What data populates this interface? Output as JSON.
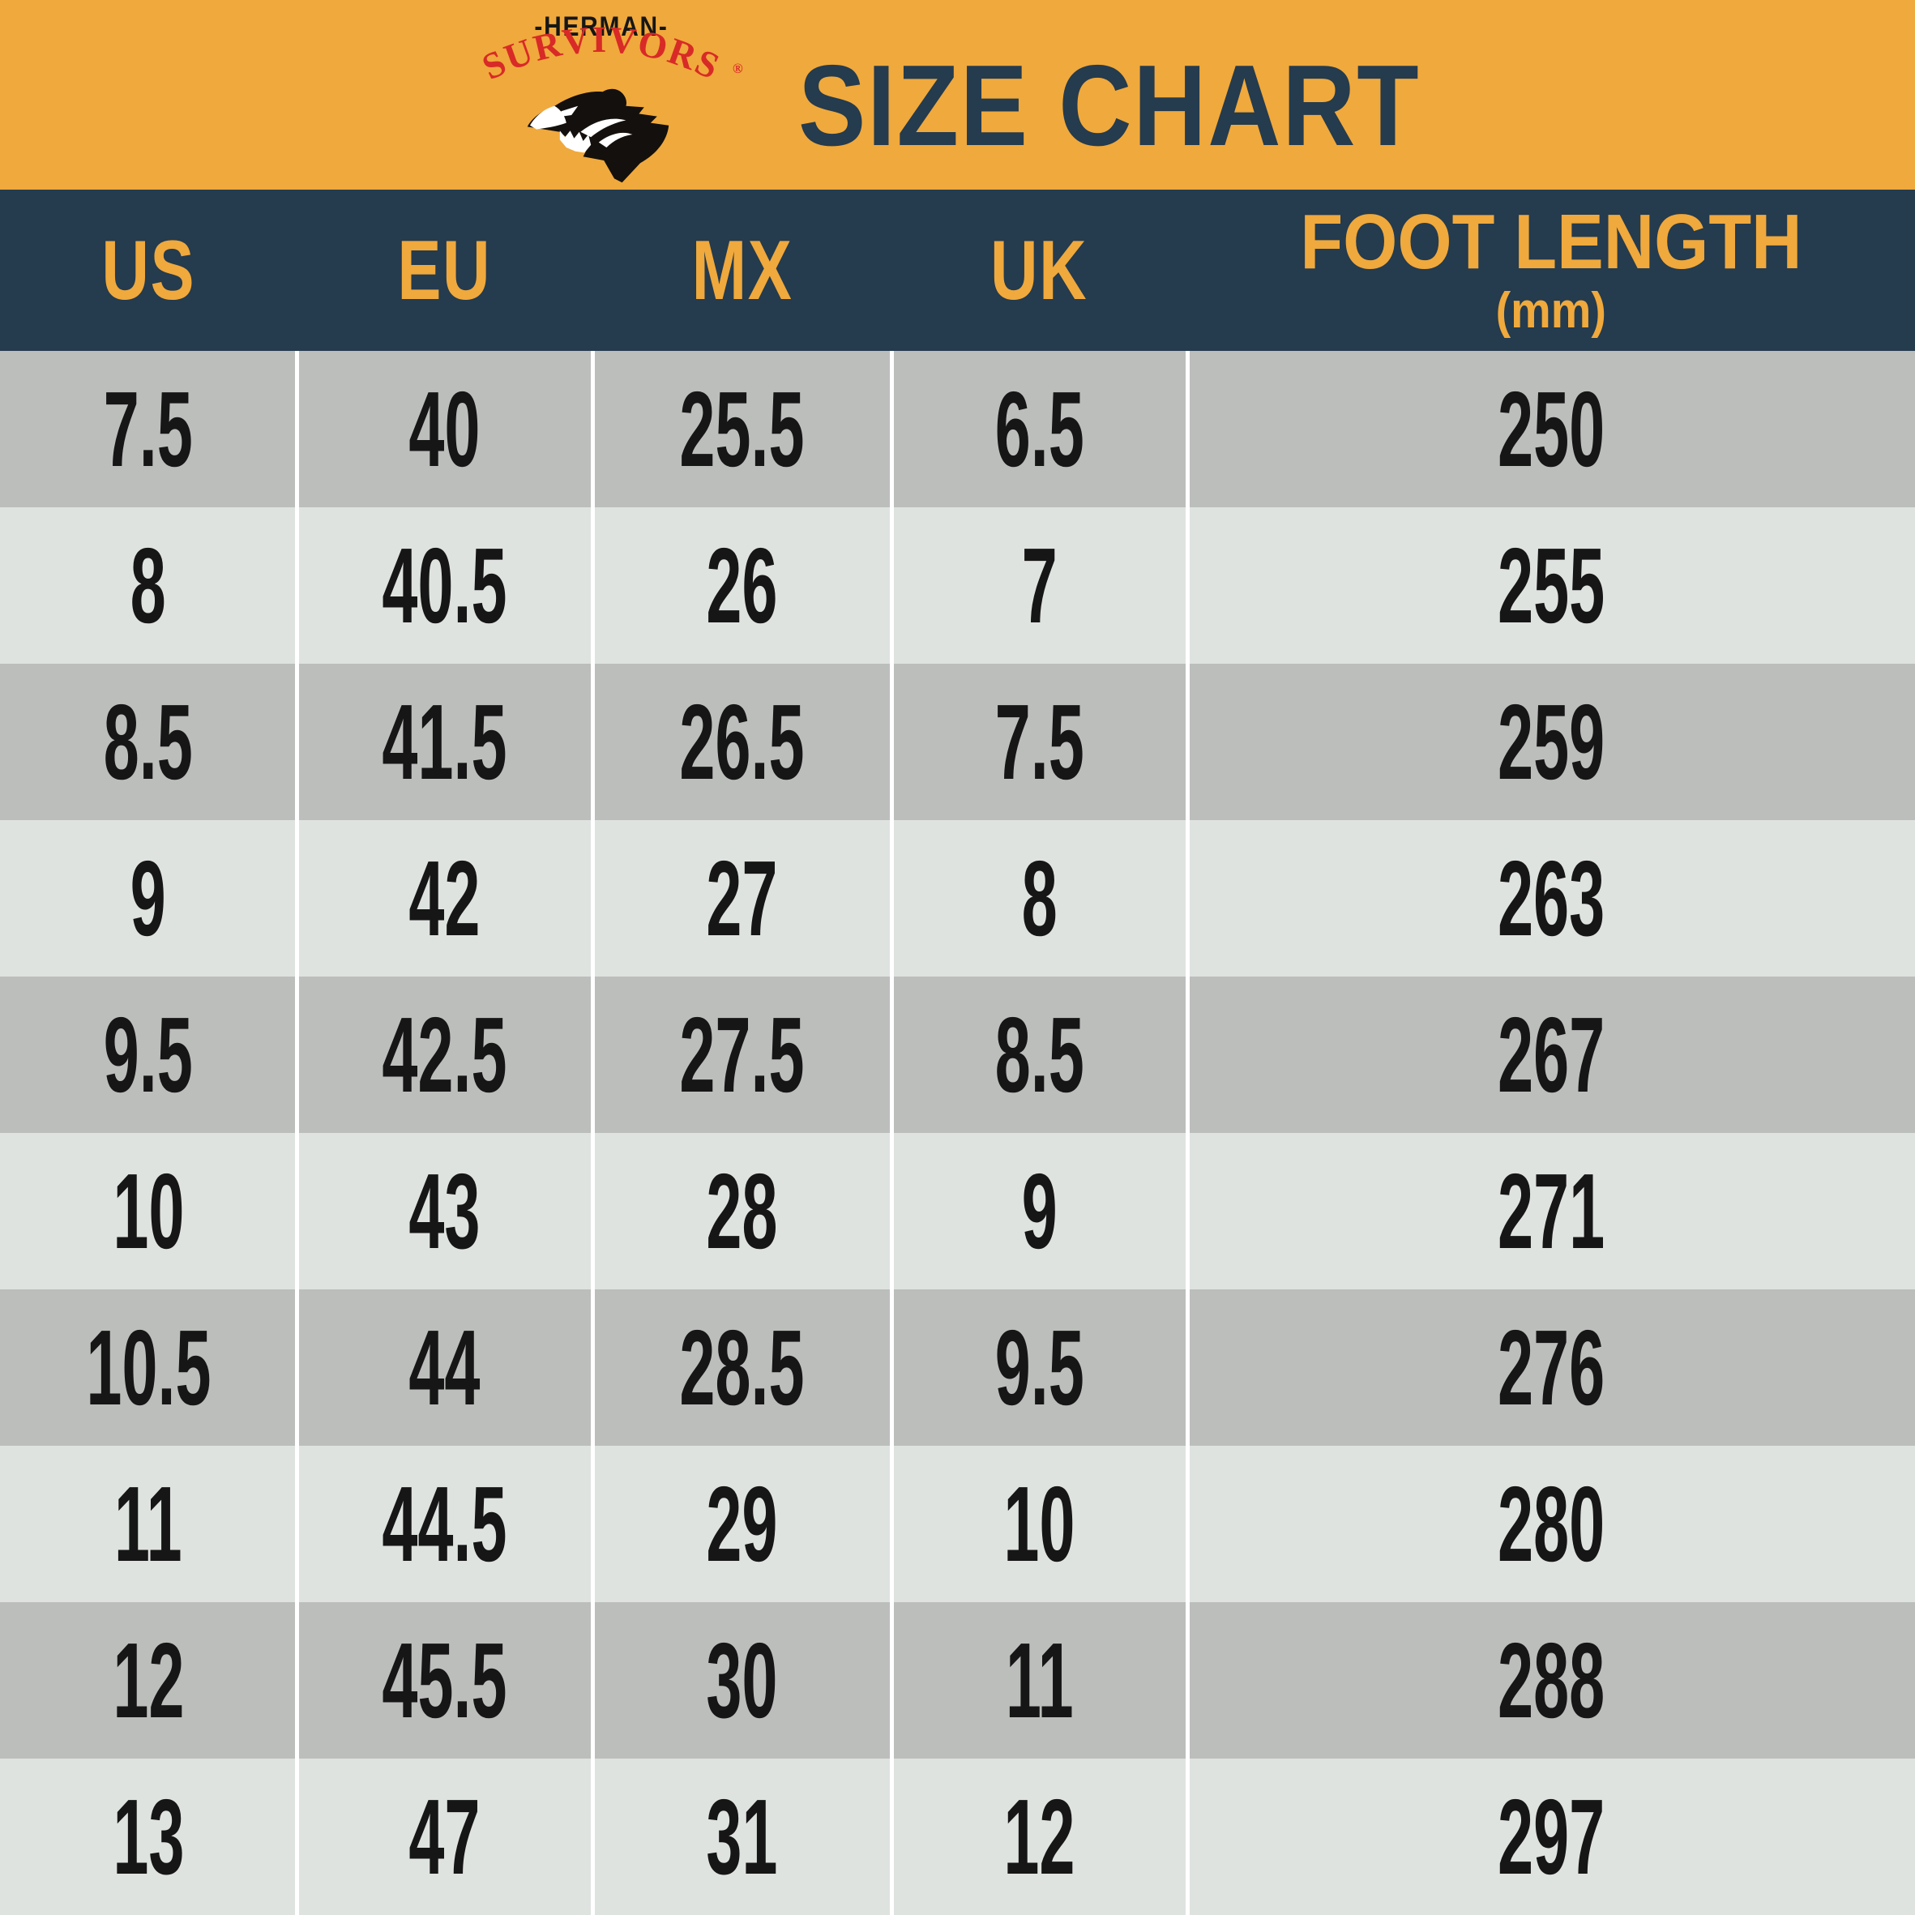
{
  "header": {
    "brand_top": "-HERMAN-",
    "brand_arc": "SURVIVORS",
    "registered_mark": "®",
    "title": "SIZE CHART"
  },
  "icons": {
    "logo": "bear-head-icon"
  },
  "colors": {
    "banner_orange": "#F0A93C",
    "band_navy": "#253B4E",
    "brand_red": "#D82A27",
    "row_dark": "#BCBEBC",
    "row_light": "#DFE3E0",
    "cell_text": "#161616",
    "divider_white": "#FFFFFF"
  },
  "chart_data": {
    "type": "table",
    "title": "SIZE CHART",
    "columns": [
      "US",
      "EU",
      "MX",
      "UK",
      "FOOT LENGTH"
    ],
    "unit_note": "(mm)",
    "rows": [
      [
        "7.5",
        "40",
        "25.5",
        "6.5",
        "250"
      ],
      [
        "8",
        "40.5",
        "26",
        "7",
        "255"
      ],
      [
        "8.5",
        "41.5",
        "26.5",
        "7.5",
        "259"
      ],
      [
        "9",
        "42",
        "27",
        "8",
        "263"
      ],
      [
        "9.5",
        "42.5",
        "27.5",
        "8.5",
        "267"
      ],
      [
        "10",
        "43",
        "28",
        "9",
        "271"
      ],
      [
        "10.5",
        "44",
        "28.5",
        "9.5",
        "276"
      ],
      [
        "11",
        "44.5",
        "29",
        "10",
        "280"
      ],
      [
        "12",
        "45.5",
        "30",
        "11",
        "288"
      ],
      [
        "13",
        "47",
        "31",
        "12",
        "297"
      ]
    ]
  }
}
